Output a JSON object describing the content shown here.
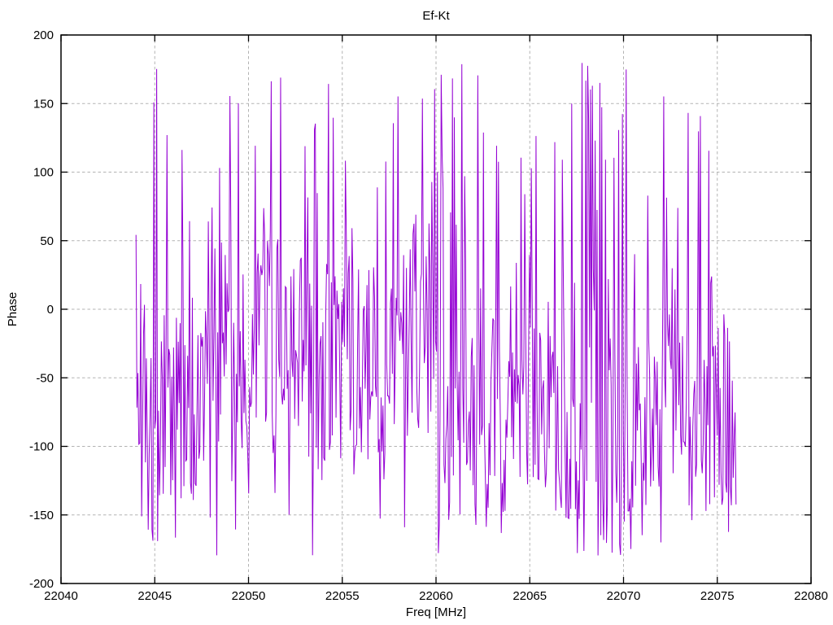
{
  "chart_data": {
    "type": "line",
    "title": "Ef-Kt",
    "xlabel": "Freq [MHz]",
    "ylabel": "Phase",
    "xlim": [
      22040,
      22080
    ],
    "ylim": [
      -200,
      200
    ],
    "xticks": [
      22040,
      22045,
      22050,
      22055,
      22060,
      22065,
      22070,
      22075,
      22080
    ],
    "yticks": [
      -200,
      -150,
      -100,
      -50,
      0,
      50,
      100,
      150,
      200
    ],
    "grid": true,
    "grid_style": "dashed-gray",
    "legend_position": "none",
    "background_color": "#ffffff",
    "border_color": "#000000",
    "grid_color": "#b3b3b3",
    "series": [
      {
        "name": "Ef-Kt",
        "color": "#9400D3",
        "style": "line",
        "x_start": 22044.0,
        "x_end": 22076.0,
        "n_points": 640,
        "y_wrap_range": [
          -180,
          180
        ],
        "description": "Dense wrapped phase noise oscillating between -180 and +180 degrees; bulk of samples between -130 and +30 with frequent spikes to both wrap limits.",
        "synthesis": {
          "seed": 1337,
          "mean": -50,
          "walk_step": 12,
          "mean_pull": 0.03,
          "narrow_spread": 75,
          "wide_prob": 0.33,
          "wide_spread": 180
        }
      }
    ]
  }
}
